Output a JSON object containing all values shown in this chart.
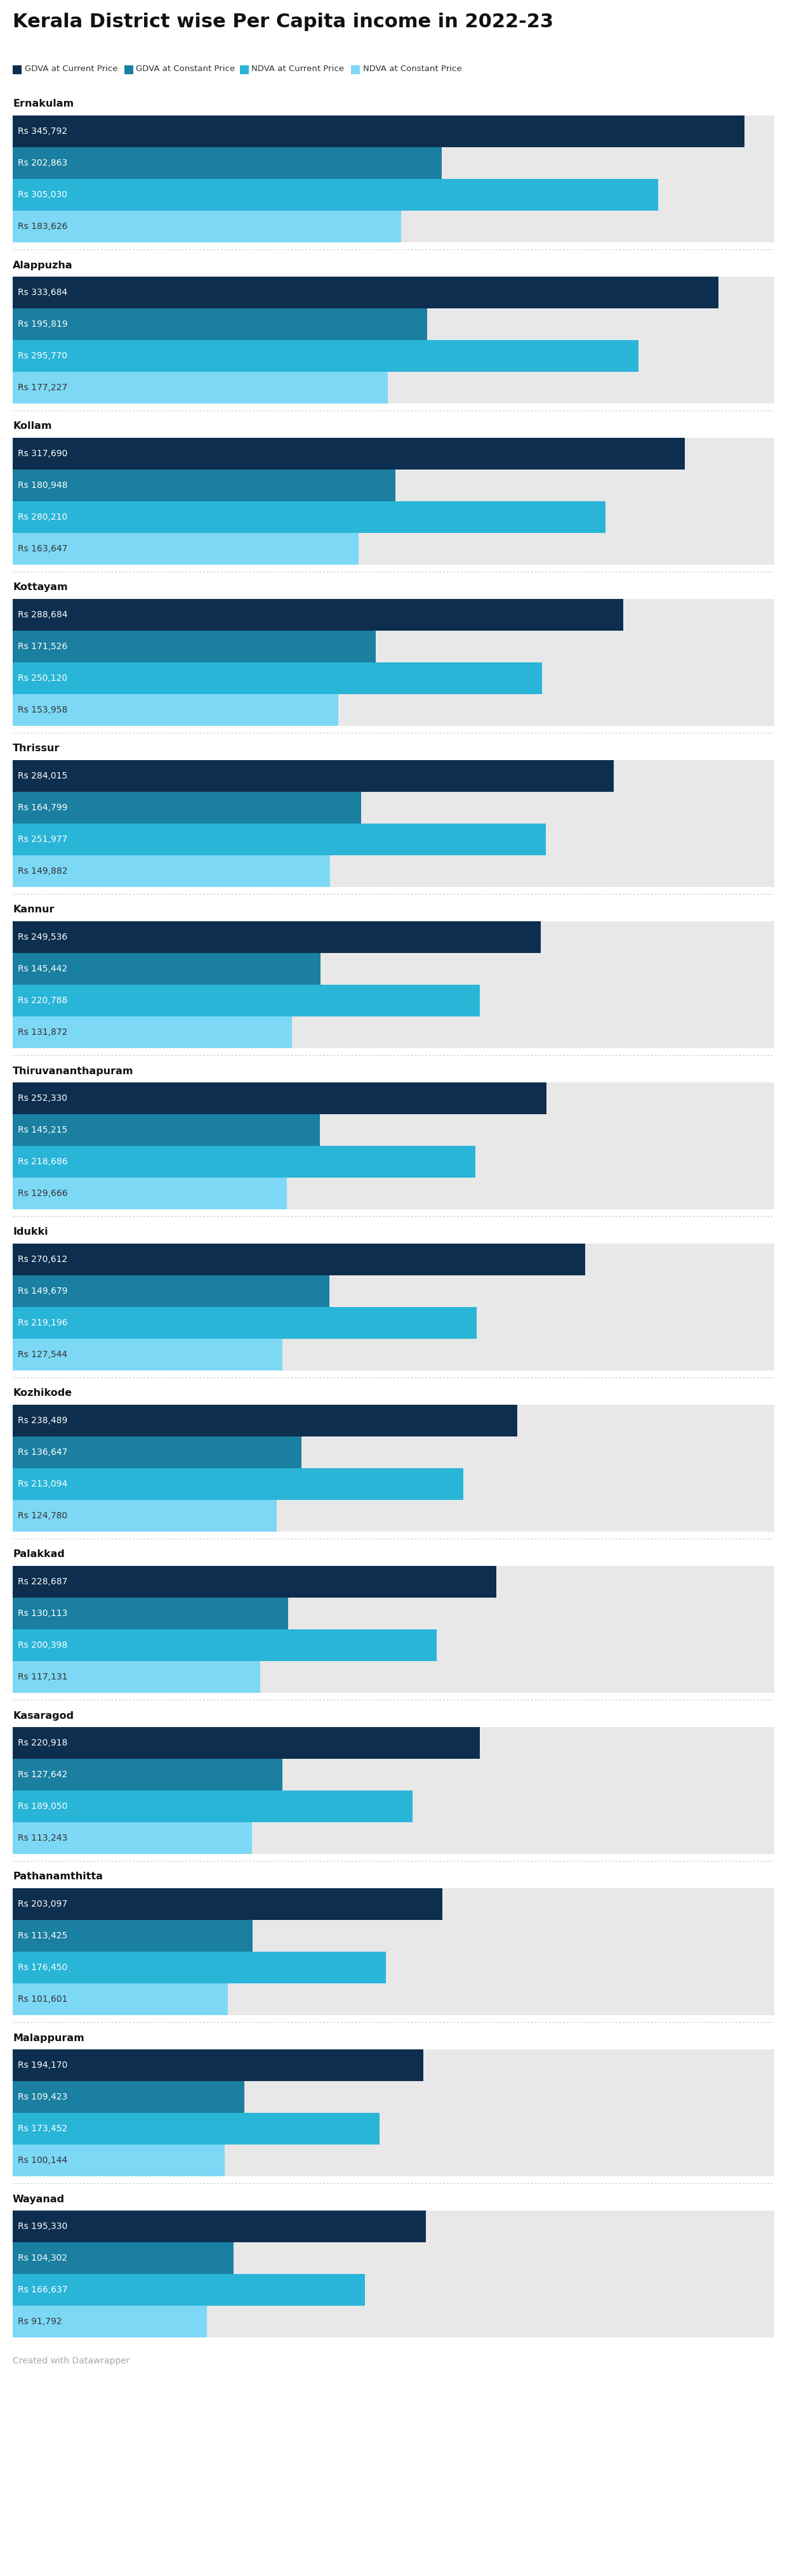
{
  "title": "Kerala District wise Per Capita income in 2022-23",
  "legend_labels": [
    "GDVA at Current Price",
    "GDVA at Constant Price",
    "NDVA at Current Price",
    "NDVA at Constant Price"
  ],
  "colors": [
    "#0d2e4e",
    "#1a7fa0",
    "#29b5d8",
    "#7dd8f5"
  ],
  "districts": [
    {
      "name": "Ernakulam",
      "values": [
        345792,
        202863,
        305030,
        183626
      ]
    },
    {
      "name": "Alappuzha",
      "values": [
        333684,
        195819,
        295770,
        177227
      ]
    },
    {
      "name": "Kollam",
      "values": [
        317690,
        180948,
        280210,
        163647
      ]
    },
    {
      "name": "Kottayam",
      "values": [
        288684,
        171526,
        250120,
        153958
      ]
    },
    {
      "name": "Thrissur",
      "values": [
        284015,
        164799,
        251977,
        149882
      ]
    },
    {
      "name": "Kannur",
      "values": [
        249536,
        145442,
        220788,
        131872
      ]
    },
    {
      "name": "Thiruvananthapuram",
      "values": [
        252330,
        145215,
        218686,
        129666
      ]
    },
    {
      "name": "Idukki",
      "values": [
        270612,
        149679,
        219196,
        127544
      ]
    },
    {
      "name": "Kozhikode",
      "values": [
        238489,
        136647,
        213094,
        124780
      ]
    },
    {
      "name": "Palakkad",
      "values": [
        228687,
        130113,
        200398,
        117131
      ]
    },
    {
      "name": "Kasaragod",
      "values": [
        220918,
        127642,
        189050,
        113243
      ]
    },
    {
      "name": "Pathanamthitta",
      "values": [
        203097,
        113425,
        176450,
        101601
      ]
    },
    {
      "name": "Malappuram",
      "values": [
        194170,
        109423,
        173452,
        100144
      ]
    },
    {
      "name": "Wayanad",
      "values": [
        195330,
        104302,
        166637,
        91792
      ]
    }
  ],
  "max_value": 360000,
  "background_color": "#ffffff",
  "bar_bg_color": "#e8e8e8",
  "footer_text": "Created with Datawrapper"
}
